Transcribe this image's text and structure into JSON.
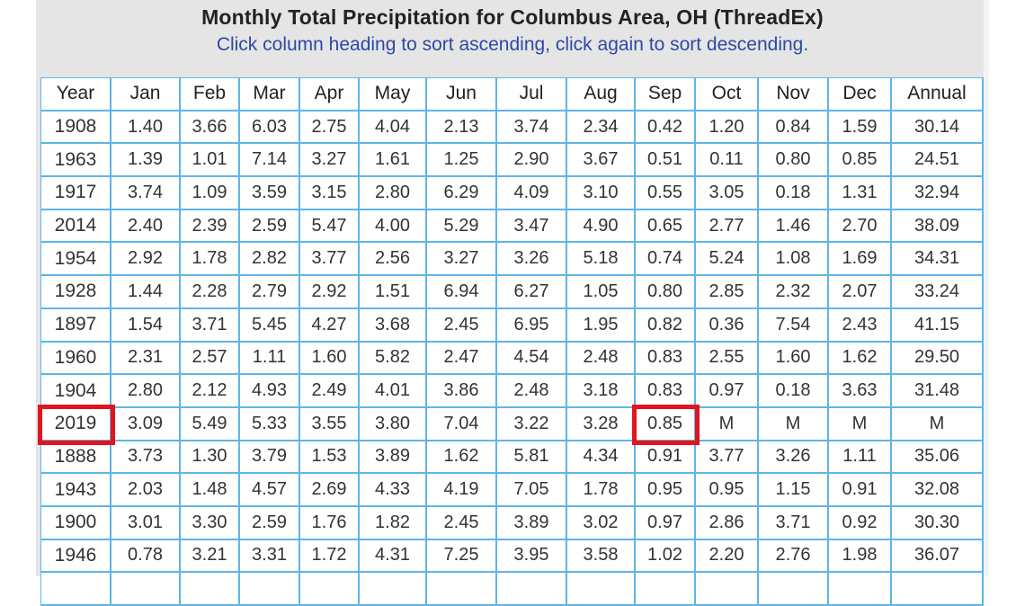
{
  "page": {
    "title": "Monthly Total Precipitation for Columbus Area, OH (ThreadEx)",
    "subtitle": "Click column heading to sort ascending, click again to sort descending."
  },
  "table": {
    "headers": [
      "Year",
      "Jan",
      "Feb",
      "Mar",
      "Apr",
      "May",
      "Jun",
      "Jul",
      "Aug",
      "Sep",
      "Oct",
      "Nov",
      "Dec",
      "Annual"
    ],
    "rows": [
      [
        "1908",
        "1.40",
        "3.66",
        "6.03",
        "2.75",
        "4.04",
        "2.13",
        "3.74",
        "2.34",
        "0.42",
        "1.20",
        "0.84",
        "1.59",
        "30.14"
      ],
      [
        "1963",
        "1.39",
        "1.01",
        "7.14",
        "3.27",
        "1.61",
        "1.25",
        "2.90",
        "3.67",
        "0.51",
        "0.11",
        "0.80",
        "0.85",
        "24.51"
      ],
      [
        "1917",
        "3.74",
        "1.09",
        "3.59",
        "3.15",
        "2.80",
        "6.29",
        "4.09",
        "3.10",
        "0.55",
        "3.05",
        "0.18",
        "1.31",
        "32.94"
      ],
      [
        "2014",
        "2.40",
        "2.39",
        "2.59",
        "5.47",
        "4.00",
        "5.29",
        "3.47",
        "4.90",
        "0.65",
        "2.77",
        "1.46",
        "2.70",
        "38.09"
      ],
      [
        "1954",
        "2.92",
        "1.78",
        "2.82",
        "3.77",
        "2.56",
        "3.27",
        "3.26",
        "5.18",
        "0.74",
        "5.24",
        "1.08",
        "1.69",
        "34.31"
      ],
      [
        "1928",
        "1.44",
        "2.28",
        "2.79",
        "2.92",
        "1.51",
        "6.94",
        "6.27",
        "1.05",
        "0.80",
        "2.85",
        "2.32",
        "2.07",
        "33.24"
      ],
      [
        "1897",
        "1.54",
        "3.71",
        "5.45",
        "4.27",
        "3.68",
        "2.45",
        "6.95",
        "1.95",
        "0.82",
        "0.36",
        "7.54",
        "2.43",
        "41.15"
      ],
      [
        "1960",
        "2.31",
        "2.57",
        "1.11",
        "1.60",
        "5.82",
        "2.47",
        "4.54",
        "2.48",
        "0.83",
        "2.55",
        "1.60",
        "1.62",
        "29.50"
      ],
      [
        "1904",
        "2.80",
        "2.12",
        "4.93",
        "2.49",
        "4.01",
        "3.86",
        "2.48",
        "3.18",
        "0.83",
        "0.97",
        "0.18",
        "3.63",
        "31.48"
      ],
      [
        "2019",
        "3.09",
        "5.49",
        "5.33",
        "3.55",
        "3.80",
        "7.04",
        "3.22",
        "3.28",
        "0.85",
        "M",
        "M",
        "M",
        "M"
      ],
      [
        "1888",
        "3.73",
        "1.30",
        "3.79",
        "1.53",
        "3.89",
        "1.62",
        "5.81",
        "4.34",
        "0.91",
        "3.77",
        "3.26",
        "1.11",
        "35.06"
      ],
      [
        "1943",
        "2.03",
        "1.48",
        "4.57",
        "2.69",
        "4.33",
        "4.19",
        "7.05",
        "1.78",
        "0.95",
        "0.95",
        "1.15",
        "0.91",
        "32.08"
      ],
      [
        "1900",
        "3.01",
        "3.30",
        "2.59",
        "1.76",
        "1.82",
        "2.45",
        "3.89",
        "3.02",
        "0.97",
        "2.86",
        "3.71",
        "0.92",
        "30.30"
      ],
      [
        "1946",
        "0.78",
        "3.21",
        "3.31",
        "1.72",
        "4.31",
        "7.25",
        "3.95",
        "3.58",
        "1.02",
        "2.20",
        "2.76",
        "1.98",
        "36.07"
      ],
      [
        "",
        "",
        "",
        "",
        "",
        "",
        "",
        "",
        "",
        "",
        "",
        "",
        "",
        ""
      ]
    ]
  },
  "highlights": [
    {
      "row": 9,
      "col": 0
    },
    {
      "row": 9,
      "col": 9
    }
  ],
  "colors": {
    "grid": "#5db6e6",
    "highlight": "#e2141e",
    "subtitle": "#2d4aa3",
    "panel": "#e5e5e5"
  }
}
